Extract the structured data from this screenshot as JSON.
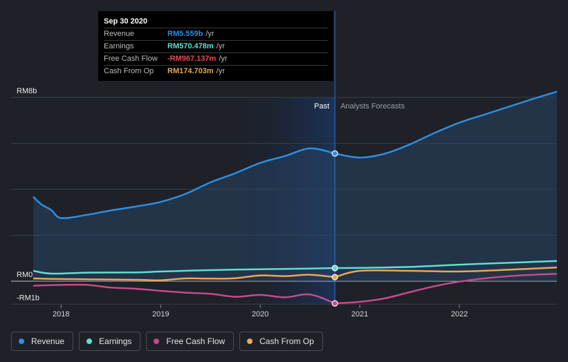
{
  "tooltip": {
    "date": "Sep 30 2020",
    "rows": [
      {
        "label": "Revenue",
        "value": "RM5.559b",
        "unit": "/yr",
        "color": "#2d8fe0"
      },
      {
        "label": "Earnings",
        "value": "RM570.478m",
        "unit": "/yr",
        "color": "#5fe0d0"
      },
      {
        "label": "Free Cash Flow",
        "value": "-RM967.137m",
        "unit": "/yr",
        "color": "#e84a57"
      },
      {
        "label": "Cash From Op",
        "value": "RM174.703m",
        "unit": "/yr",
        "color": "#e8a855"
      }
    ]
  },
  "legend": [
    {
      "label": "Revenue",
      "color": "#2d8fe0"
    },
    {
      "label": "Earnings",
      "color": "#5fe0d0"
    },
    {
      "label": "Free Cash Flow",
      "color": "#c84a8a"
    },
    {
      "label": "Cash From Op",
      "color": "#e8a855"
    }
  ],
  "chart_data": {
    "type": "line",
    "title": "",
    "xlabel": "",
    "ylabel": "",
    "xlim": [
      2017.72,
      2022.98
    ],
    "ylim": [
      -1,
      8
    ],
    "x_ticks": [
      2018,
      2019,
      2020,
      2021,
      2022
    ],
    "x_tick_labels": [
      "2018",
      "2019",
      "2020",
      "2021",
      "2022"
    ],
    "y_axis_labels": [
      {
        "value": 8,
        "label": "RM8b"
      },
      {
        "value": 0,
        "label": "RM0"
      },
      {
        "value": -1,
        "label": "-RM1b"
      }
    ],
    "gridlines_y": [
      8,
      6,
      4,
      2,
      0,
      -1
    ],
    "divider_x": 2020.75,
    "region_labels": {
      "past": "Past",
      "forecast": "Analysts Forecasts"
    },
    "series": [
      {
        "name": "Revenue",
        "color": "#2d8fe0",
        "fill": true,
        "points": [
          [
            2017.72,
            3.68
          ],
          [
            2017.8,
            3.35
          ],
          [
            2017.9,
            3.1
          ],
          [
            2018.0,
            2.75
          ],
          [
            2018.25,
            2.88
          ],
          [
            2018.5,
            3.08
          ],
          [
            2018.75,
            3.25
          ],
          [
            2019.0,
            3.45
          ],
          [
            2019.25,
            3.8
          ],
          [
            2019.5,
            4.3
          ],
          [
            2019.75,
            4.7
          ],
          [
            2020.0,
            5.15
          ],
          [
            2020.25,
            5.45
          ],
          [
            2020.5,
            5.78
          ],
          [
            2020.75,
            5.559
          ],
          [
            2021.0,
            5.38
          ],
          [
            2021.25,
            5.55
          ],
          [
            2021.5,
            5.95
          ],
          [
            2021.75,
            6.45
          ],
          [
            2022.0,
            6.9
          ],
          [
            2022.25,
            7.25
          ],
          [
            2022.5,
            7.6
          ],
          [
            2022.75,
            7.95
          ],
          [
            2022.98,
            8.25
          ]
        ],
        "split_x": 2020.75,
        "marker_x": 2020.75,
        "marker_y": 5.559
      },
      {
        "name": "Earnings",
        "color": "#5fe0d0",
        "fill": false,
        "points": [
          [
            2017.72,
            0.45
          ],
          [
            2017.9,
            0.33
          ],
          [
            2018.25,
            0.37
          ],
          [
            2018.75,
            0.38
          ],
          [
            2019.0,
            0.42
          ],
          [
            2019.5,
            0.48
          ],
          [
            2020.0,
            0.52
          ],
          [
            2020.5,
            0.55
          ],
          [
            2020.75,
            0.57
          ],
          [
            2021.0,
            0.58
          ],
          [
            2021.5,
            0.62
          ],
          [
            2022.0,
            0.72
          ],
          [
            2022.5,
            0.8
          ],
          [
            2022.98,
            0.88
          ]
        ],
        "split_x": 2020.75,
        "marker_x": 2020.75,
        "marker_y": 0.57
      },
      {
        "name": "Free Cash Flow",
        "color": "#c84a8a",
        "fill": false,
        "points": [
          [
            2017.72,
            -0.2
          ],
          [
            2017.9,
            -0.17
          ],
          [
            2018.25,
            -0.16
          ],
          [
            2018.5,
            -0.28
          ],
          [
            2018.75,
            -0.33
          ],
          [
            2019.0,
            -0.42
          ],
          [
            2019.25,
            -0.5
          ],
          [
            2019.5,
            -0.55
          ],
          [
            2019.75,
            -0.68
          ],
          [
            2020.0,
            -0.6
          ],
          [
            2020.25,
            -0.7
          ],
          [
            2020.5,
            -0.58
          ],
          [
            2020.75,
            -0.967
          ],
          [
            2021.0,
            -0.9
          ],
          [
            2021.25,
            -0.75
          ],
          [
            2021.5,
            -0.48
          ],
          [
            2021.75,
            -0.22
          ],
          [
            2022.0,
            -0.02
          ],
          [
            2022.25,
            0.12
          ],
          [
            2022.5,
            0.22
          ],
          [
            2022.75,
            0.28
          ],
          [
            2022.98,
            0.32
          ]
        ],
        "split_x": 2020.75,
        "marker_x": 2020.75,
        "marker_y": -0.967
      },
      {
        "name": "Cash From Op",
        "color": "#e8a855",
        "fill": false,
        "points": [
          [
            2017.72,
            0.12
          ],
          [
            2017.9,
            0.1
          ],
          [
            2018.25,
            0.08
          ],
          [
            2018.75,
            0.06
          ],
          [
            2019.0,
            0.04
          ],
          [
            2019.25,
            0.12
          ],
          [
            2019.5,
            0.11
          ],
          [
            2019.75,
            0.13
          ],
          [
            2020.0,
            0.25
          ],
          [
            2020.25,
            0.22
          ],
          [
            2020.5,
            0.28
          ],
          [
            2020.75,
            0.175
          ],
          [
            2021.0,
            0.45
          ],
          [
            2021.5,
            0.45
          ],
          [
            2022.0,
            0.42
          ],
          [
            2022.5,
            0.5
          ],
          [
            2022.98,
            0.6
          ]
        ],
        "split_x": 2020.75,
        "marker_x": 2020.75,
        "marker_y": 0.175
      }
    ]
  }
}
